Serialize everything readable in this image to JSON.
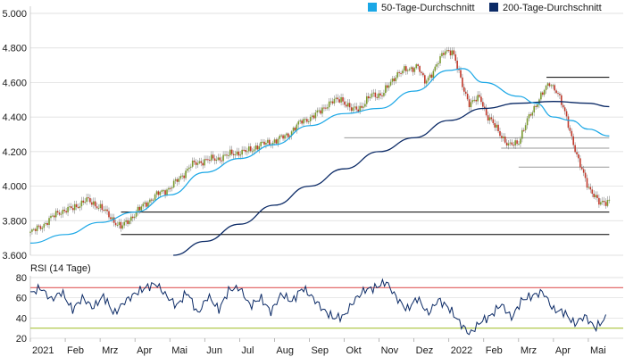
{
  "chart_data": [
    {
      "type": "candlestick",
      "title": "",
      "ylim": [
        3600,
        5000
      ],
      "y_ticks": [
        "3.600",
        "3.800",
        "4.000",
        "4.200",
        "4.400",
        "4.600",
        "4.800",
        "5.000"
      ],
      "y_tick_values": [
        3600,
        3800,
        4000,
        4200,
        4400,
        4600,
        4800,
        5000
      ],
      "x_ticks": [
        "2021",
        "Feb",
        "Mrz",
        "Apr",
        "Mai",
        "Jun",
        "Jul",
        "Aug",
        "Sep",
        "Okt",
        "Nov",
        "Dez",
        "2022",
        "Feb",
        "Mrz",
        "Apr",
        "Mai"
      ],
      "grid": true,
      "legend_position": "top-right",
      "legend": [
        {
          "label": "50-Tage-Durchschnitt",
          "color": "#1aa7e6"
        },
        {
          "label": "200-Tage-Durchschnitt",
          "color": "#0b2a66"
        }
      ],
      "colors": {
        "up": "#7a9a2e",
        "down": "#c0392b",
        "ma50": "#1aa7e6",
        "ma200": "#0b2a66",
        "support": "#000000",
        "support_minor": "#9a9a9a"
      },
      "price_path": [
        [
          0,
          3730
        ],
        [
          0.4,
          3780
        ],
        [
          0.8,
          3850
        ],
        [
          1.2,
          3870
        ],
        [
          1.6,
          3920
        ],
        [
          2.0,
          3880
        ],
        [
          2.3,
          3820
        ],
        [
          2.6,
          3760
        ],
        [
          2.9,
          3820
        ],
        [
          3.3,
          3900
        ],
        [
          3.7,
          3960
        ],
        [
          4.0,
          3990
        ],
        [
          4.3,
          4050
        ],
        [
          4.6,
          4120
        ],
        [
          5.0,
          4150
        ],
        [
          5.4,
          4160
        ],
        [
          5.8,
          4190
        ],
        [
          6.2,
          4200
        ],
        [
          6.6,
          4240
        ],
        [
          7.0,
          4260
        ],
        [
          7.4,
          4300
        ],
        [
          7.8,
          4380
        ],
        [
          8.1,
          4400
        ],
        [
          8.5,
          4470
        ],
        [
          8.9,
          4510
        ],
        [
          9.2,
          4440
        ],
        [
          9.5,
          4460
        ],
        [
          9.8,
          4530
        ],
        [
          10.1,
          4530
        ],
        [
          10.5,
          4650
        ],
        [
          10.9,
          4680
        ],
        [
          11.1,
          4700
        ],
        [
          11.3,
          4600
        ],
        [
          11.6,
          4680
        ],
        [
          11.9,
          4790
        ],
        [
          12.1,
          4780
        ],
        [
          12.4,
          4580
        ],
        [
          12.6,
          4470
        ],
        [
          12.9,
          4520
        ],
        [
          13.1,
          4400
        ],
        [
          13.4,
          4330
        ],
        [
          13.7,
          4230
        ],
        [
          14.0,
          4260
        ],
        [
          14.3,
          4400
        ],
        [
          14.6,
          4510
        ],
        [
          14.9,
          4600
        ],
        [
          15.1,
          4550
        ],
        [
          15.4,
          4380
        ],
        [
          15.7,
          4150
        ],
        [
          16.0,
          4000
        ],
        [
          16.3,
          3900
        ],
        [
          16.6,
          3920
        ]
      ],
      "ma50_path": [
        [
          0,
          3670
        ],
        [
          1,
          3720
        ],
        [
          2,
          3790
        ],
        [
          3,
          3850
        ],
        [
          4,
          3950
        ],
        [
          5,
          4080
        ],
        [
          6,
          4160
        ],
        [
          7,
          4240
        ],
        [
          8,
          4350
        ],
        [
          9,
          4420
        ],
        [
          10,
          4450
        ],
        [
          11,
          4550
        ],
        [
          12,
          4670
        ],
        [
          12.4,
          4680
        ],
        [
          13,
          4600
        ],
        [
          14,
          4520
        ],
        [
          14.5,
          4480
        ],
        [
          15,
          4400
        ],
        [
          15.5,
          4380
        ],
        [
          16,
          4330
        ],
        [
          16.6,
          4290
        ]
      ],
      "ma200_path": [
        [
          4.1,
          3600
        ],
        [
          5,
          3680
        ],
        [
          6,
          3780
        ],
        [
          7,
          3890
        ],
        [
          8,
          4000
        ],
        [
          9,
          4100
        ],
        [
          10,
          4200
        ],
        [
          11,
          4280
        ],
        [
          12,
          4380
        ],
        [
          13,
          4450
        ],
        [
          14,
          4480
        ],
        [
          15,
          4490
        ],
        [
          16,
          4480
        ],
        [
          16.6,
          4460
        ]
      ],
      "support_lines": [
        {
          "value": 3850,
          "x_from": 2.6,
          "x_to": 16.6,
          "style": "major"
        },
        {
          "value": 3720,
          "x_from": 2.6,
          "x_to": 16.6,
          "style": "major"
        },
        {
          "value": 4630,
          "x_from": 14.8,
          "x_to": 16.6,
          "style": "major"
        },
        {
          "value": 4280,
          "x_from": 9.0,
          "x_to": 16.6,
          "style": "minor"
        },
        {
          "value": 4220,
          "x_from": 13.5,
          "x_to": 16.6,
          "style": "minor"
        },
        {
          "value": 4110,
          "x_from": 14.0,
          "x_to": 16.6,
          "style": "minor"
        }
      ]
    },
    {
      "type": "line",
      "title": "RSI (14 Tage)",
      "ylim": [
        20,
        80
      ],
      "y_ticks": [
        "20",
        "40",
        "60",
        "80"
      ],
      "y_tick_values": [
        20,
        40,
        60,
        80
      ],
      "reference_lines": [
        {
          "value": 70,
          "color": "#e05a5a"
        },
        {
          "value": 30,
          "color": "#a8c23a"
        }
      ],
      "rsi_path": [
        [
          0,
          64
        ],
        [
          0.3,
          70
        ],
        [
          0.6,
          58
        ],
        [
          0.9,
          66
        ],
        [
          1.2,
          48
        ],
        [
          1.5,
          60
        ],
        [
          1.8,
          50
        ],
        [
          2.1,
          62
        ],
        [
          2.4,
          44
        ],
        [
          2.7,
          56
        ],
        [
          3.0,
          64
        ],
        [
          3.3,
          70
        ],
        [
          3.6,
          74
        ],
        [
          3.9,
          62
        ],
        [
          4.2,
          52
        ],
        [
          4.5,
          66
        ],
        [
          4.8,
          44
        ],
        [
          5.1,
          62
        ],
        [
          5.4,
          48
        ],
        [
          5.7,
          68
        ],
        [
          6.0,
          70
        ],
        [
          6.3,
          52
        ],
        [
          6.6,
          60
        ],
        [
          6.9,
          46
        ],
        [
          7.2,
          64
        ],
        [
          7.5,
          56
        ],
        [
          7.8,
          70
        ],
        [
          8.1,
          60
        ],
        [
          8.4,
          48
        ],
        [
          8.7,
          40
        ],
        [
          9.0,
          42
        ],
        [
          9.3,
          58
        ],
        [
          9.6,
          68
        ],
        [
          9.9,
          70
        ],
        [
          10.2,
          76
        ],
        [
          10.5,
          60
        ],
        [
          10.8,
          48
        ],
        [
          11.1,
          60
        ],
        [
          11.4,
          44
        ],
        [
          11.7,
          58
        ],
        [
          12.0,
          50
        ],
        [
          12.3,
          36
        ],
        [
          12.6,
          24
        ],
        [
          12.9,
          36
        ],
        [
          13.2,
          42
        ],
        [
          13.5,
          54
        ],
        [
          13.8,
          40
        ],
        [
          14.1,
          58
        ],
        [
          14.4,
          62
        ],
        [
          14.7,
          66
        ],
        [
          15.0,
          48
        ],
        [
          15.3,
          46
        ],
        [
          15.6,
          34
        ],
        [
          15.9,
          42
        ],
        [
          16.2,
          30
        ],
        [
          16.5,
          40
        ]
      ]
    }
  ]
}
